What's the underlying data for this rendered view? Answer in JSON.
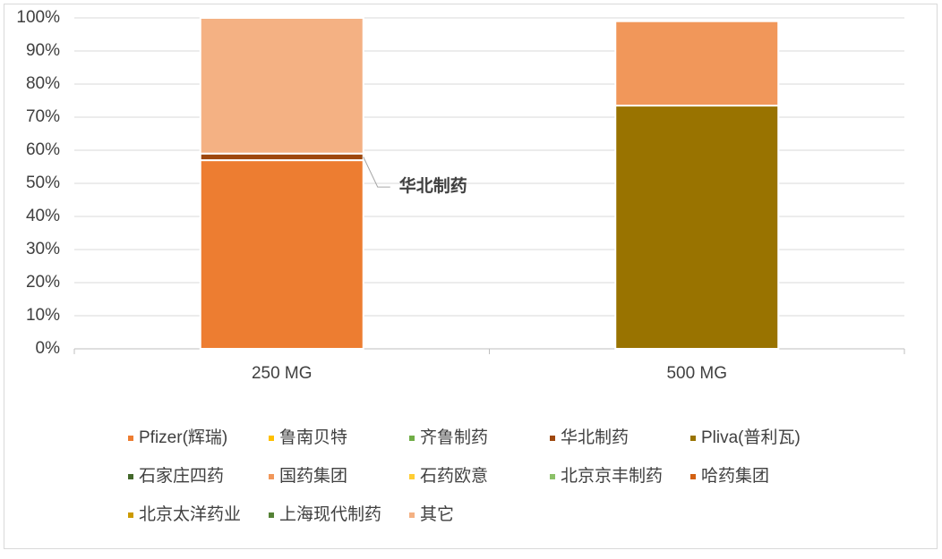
{
  "chart_data": {
    "type": "stacked_bar",
    "categories": [
      "250 MG",
      "500 MG"
    ],
    "series": [
      {
        "name": "Pfizer(辉瑞)",
        "color": "#ed7d31",
        "values": [
          57,
          0
        ]
      },
      {
        "name": "鲁南贝特",
        "color": "#ffc000",
        "values": [
          0,
          0
        ]
      },
      {
        "name": "齐鲁制药",
        "color": "#70ad47",
        "values": [
          0,
          0
        ]
      },
      {
        "name": "华北制药",
        "color": "#9e480e",
        "values": [
          2,
          0
        ]
      },
      {
        "name": "Pliva(普利瓦)",
        "color": "#997300",
        "values": [
          0,
          73.5
        ]
      },
      {
        "name": "石家庄四药",
        "color": "#43682b",
        "values": [
          0,
          0
        ]
      },
      {
        "name": "国药集团",
        "color": "#f1975a",
        "values": [
          0,
          25.5
        ]
      },
      {
        "name": "石药欧意",
        "color": "#ffcd33",
        "values": [
          0,
          0
        ]
      },
      {
        "name": "北京京丰制药",
        "color": "#8cc168",
        "values": [
          0,
          0
        ]
      },
      {
        "name": "哈药集团",
        "color": "#d26012",
        "values": [
          0,
          0
        ]
      },
      {
        "name": "北京太洋药业",
        "color": "#cc9a00",
        "values": [
          0,
          0
        ]
      },
      {
        "name": "上海现代制药",
        "color": "#548235",
        "values": [
          0,
          0
        ]
      },
      {
        "name": "其它",
        "color": "#f4b183",
        "values": [
          41,
          0
        ]
      }
    ],
    "annotation": "华北制药",
    "ylim": [
      0,
      100
    ],
    "yticks": [
      {
        "value": 0,
        "label": "0%"
      },
      {
        "value": 10,
        "label": "10%"
      },
      {
        "value": 20,
        "label": "20%"
      },
      {
        "value": 30,
        "label": "30%"
      },
      {
        "value": 40,
        "label": "40%"
      },
      {
        "value": 50,
        "label": "50%"
      },
      {
        "value": 60,
        "label": "60%"
      },
      {
        "value": 70,
        "label": "70%"
      },
      {
        "value": 80,
        "label": "80%"
      },
      {
        "value": 90,
        "label": "90%"
      },
      {
        "value": 100,
        "label": "100%"
      }
    ],
    "grid": true,
    "legend": "bottom"
  }
}
